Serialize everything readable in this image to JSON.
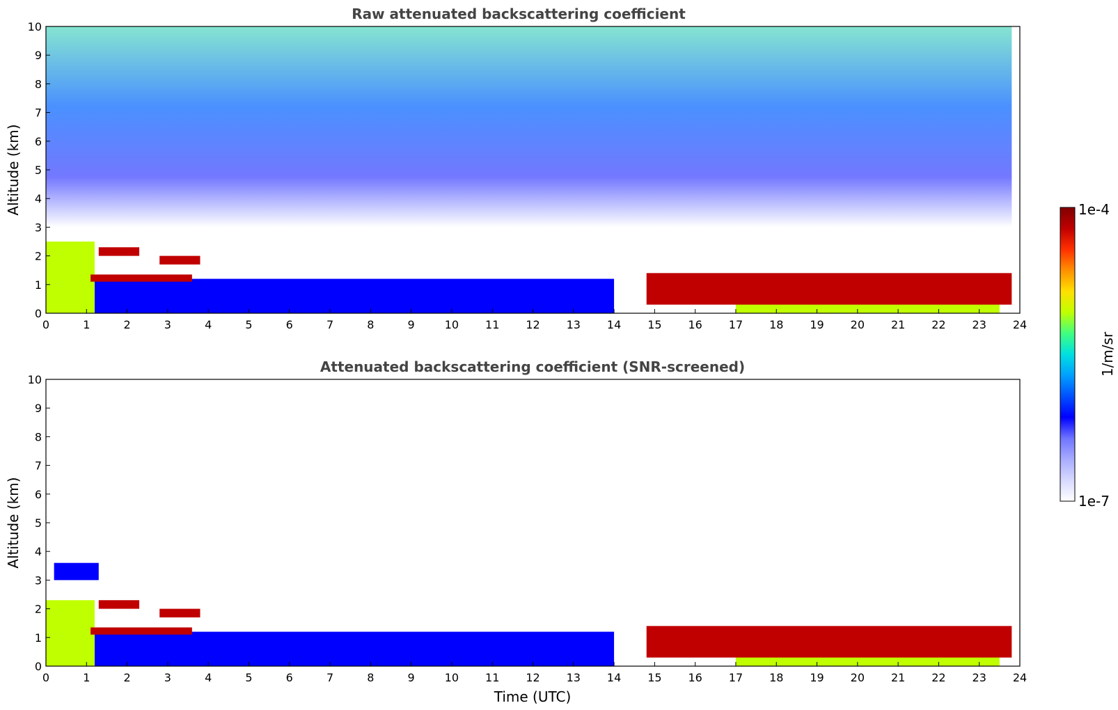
{
  "chart_data": [
    {
      "type": "heatmap",
      "title": "Raw attenuated backscattering coefficient",
      "xlabel": "",
      "ylabel": "Altitude (km)",
      "xlim": [
        0,
        24
      ],
      "ylim": [
        0,
        10
      ],
      "xticks": [
        "0",
        "1",
        "2",
        "3",
        "4",
        "5",
        "6",
        "7",
        "8",
        "9",
        "10",
        "11",
        "12",
        "13",
        "14",
        "15",
        "16",
        "17",
        "18",
        "19",
        "20",
        "21",
        "22",
        "23",
        "24"
      ],
      "yticks": [
        "0",
        "1",
        "2",
        "3",
        "4",
        "5",
        "6",
        "7",
        "8",
        "9",
        "10"
      ],
      "grid": false,
      "features": [
        {
          "time_start": 0.0,
          "time_end": 1.2,
          "alt_bottom": 0.0,
          "alt_top": 2.5,
          "level": "high"
        },
        {
          "time_start": 1.1,
          "time_end": 3.6,
          "alt_bottom": 1.1,
          "alt_top": 1.35,
          "level": "very-high"
        },
        {
          "time_start": 1.3,
          "time_end": 2.3,
          "alt_bottom": 2.0,
          "alt_top": 2.3,
          "level": "very-high"
        },
        {
          "time_start": 2.8,
          "time_end": 3.8,
          "alt_bottom": 1.7,
          "alt_top": 2.0,
          "level": "very-high"
        },
        {
          "time_start": 1.2,
          "time_end": 14.0,
          "alt_bottom": 0.0,
          "alt_top": 1.2,
          "level": "medium"
        },
        {
          "time_start": 14.8,
          "time_end": 23.8,
          "alt_bottom": 0.3,
          "alt_top": 1.4,
          "level": "very-high"
        },
        {
          "time_start": 17.0,
          "time_end": 23.5,
          "alt_bottom": 0.0,
          "alt_top": 1.2,
          "level": "high"
        },
        {
          "time_start": 0.0,
          "time_end": 23.8,
          "alt_bottom": 3.0,
          "alt_top": 10.0,
          "level": "noise"
        }
      ]
    },
    {
      "type": "heatmap",
      "title": "Attenuated backscattering coefficient (SNR-screened)",
      "xlabel": "Time (UTC)",
      "ylabel": "Altitude (km)",
      "xlim": [
        0,
        24
      ],
      "ylim": [
        0,
        10
      ],
      "xticks": [
        "0",
        "1",
        "2",
        "3",
        "4",
        "5",
        "6",
        "7",
        "8",
        "9",
        "10",
        "11",
        "12",
        "13",
        "14",
        "15",
        "16",
        "17",
        "18",
        "19",
        "20",
        "21",
        "22",
        "23",
        "24"
      ],
      "yticks": [
        "0",
        "1",
        "2",
        "3",
        "4",
        "5",
        "6",
        "7",
        "8",
        "9",
        "10"
      ],
      "grid": false,
      "features": [
        {
          "time_start": 0.0,
          "time_end": 1.2,
          "alt_bottom": 0.0,
          "alt_top": 2.3,
          "level": "high"
        },
        {
          "time_start": 0.2,
          "time_end": 1.3,
          "alt_bottom": 3.0,
          "alt_top": 3.6,
          "level": "medium"
        },
        {
          "time_start": 1.1,
          "time_end": 3.6,
          "alt_bottom": 1.1,
          "alt_top": 1.35,
          "level": "very-high"
        },
        {
          "time_start": 1.3,
          "time_end": 2.3,
          "alt_bottom": 2.0,
          "alt_top": 2.3,
          "level": "very-high"
        },
        {
          "time_start": 2.8,
          "time_end": 3.8,
          "alt_bottom": 1.7,
          "alt_top": 2.0,
          "level": "very-high"
        },
        {
          "time_start": 1.2,
          "time_end": 14.0,
          "alt_bottom": 0.0,
          "alt_top": 1.2,
          "level": "medium"
        },
        {
          "time_start": 14.8,
          "time_end": 23.8,
          "alt_bottom": 0.3,
          "alt_top": 1.4,
          "level": "very-high"
        },
        {
          "time_start": 17.0,
          "time_end": 23.5,
          "alt_bottom": 0.0,
          "alt_top": 1.2,
          "level": "high"
        }
      ]
    }
  ],
  "colorbar": {
    "max_label": "1e-4",
    "min_label": "1e-7",
    "unit_label": "1/m/sr",
    "colormap": [
      "#ffffff",
      "#d7d9ff",
      "#a7abff",
      "#6f74ff",
      "#0000ff",
      "#0050ff",
      "#00a0ff",
      "#00e0e0",
      "#40ff80",
      "#c0ff00",
      "#ffe000",
      "#ff9000",
      "#ff3000",
      "#c00000",
      "#800000"
    ]
  }
}
